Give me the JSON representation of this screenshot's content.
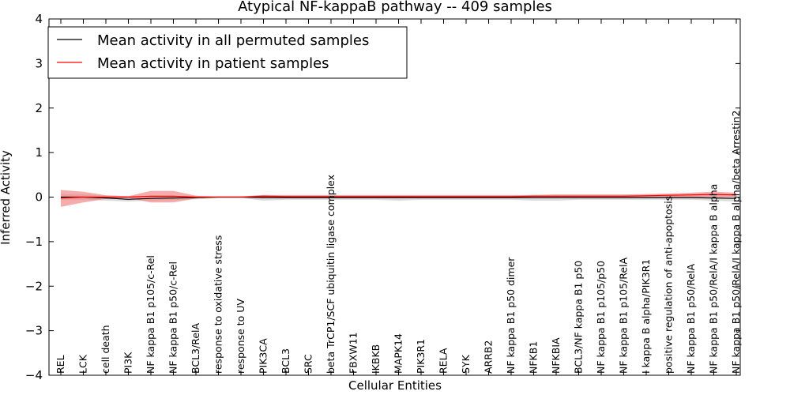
{
  "chart_data": {
    "type": "line",
    "title": "Atypical NF-kappaB pathway -- 409 samples",
    "xlabel": "Cellular Entities",
    "ylabel": "Inferred Activity",
    "ylim": [
      -4,
      4
    ],
    "yticks": [
      4,
      3,
      2,
      1,
      0,
      -1,
      -2,
      -3,
      -4
    ],
    "ytick_labels": [
      "4",
      "3",
      "2",
      "1",
      "0",
      "−1",
      "−2",
      "−3",
      "−4"
    ],
    "grid": false,
    "legend_location": "top-left",
    "categories": [
      "REL",
      "LCK",
      "cell death",
      "PI3K",
      "NF kappa B1 p105/c-Rel",
      "NF kappa B1 p50/c-Rel",
      "BCL3/RelA",
      "response to oxidative stress",
      "response to UV",
      "PIK3CA",
      "BCL3",
      "SRC",
      "beta TrCP1/SCF ubiquitin ligase complex",
      "FBXW11",
      "IKBKB",
      "MAPK14",
      "PIK3R1",
      "RELA",
      "SYK",
      "ARRB2",
      "NF kappa B1 p50 dimer",
      "NFKB1",
      "NFKBIA",
      "BCL3/NF kappa B1 p50",
      "NF kappa B1 p105/p50",
      "NF kappa B1 p105/RelA",
      "I kappa B alpha/PIK3R1",
      "positive regulation of anti-apoptosis",
      "NF kappa B1 p50/RelA",
      "NF kappa B1 p50/RelA/I kappa B alpha",
      "NF kappa B1 p50/RelA/I kappa B alpha/beta Arrestin2"
    ],
    "series": [
      {
        "name": "Mean activity in all permuted samples",
        "color": "#000000",
        "values": [
          0.0,
          0.0,
          -0.02,
          -0.05,
          -0.03,
          -0.02,
          -0.01,
          0.0,
          0.0,
          -0.01,
          -0.01,
          -0.01,
          -0.01,
          -0.01,
          -0.01,
          -0.01,
          -0.01,
          -0.01,
          -0.01,
          -0.01,
          -0.01,
          -0.01,
          -0.01,
          -0.01,
          -0.01,
          -0.01,
          -0.01,
          -0.01,
          -0.01,
          -0.02,
          -0.03
        ],
        "band_lower": [
          -0.06,
          -0.06,
          -0.08,
          -0.1,
          -0.08,
          -0.07,
          -0.05,
          -0.02,
          -0.02,
          -0.08,
          -0.06,
          -0.06,
          -0.06,
          -0.06,
          -0.06,
          -0.08,
          -0.06,
          -0.06,
          -0.06,
          -0.06,
          -0.06,
          -0.08,
          -0.08,
          -0.06,
          -0.06,
          -0.06,
          -0.06,
          -0.06,
          -0.06,
          -0.08,
          -0.1
        ],
        "band_upper": [
          0.06,
          0.06,
          0.04,
          0.02,
          0.03,
          0.03,
          0.03,
          0.02,
          0.02,
          0.05,
          0.05,
          0.05,
          0.05,
          0.05,
          0.05,
          0.05,
          0.05,
          0.05,
          0.05,
          0.05,
          0.05,
          0.05,
          0.05,
          0.05,
          0.05,
          0.05,
          0.05,
          0.05,
          0.05,
          0.06,
          0.06
        ],
        "band_color": "#b0b0b0"
      },
      {
        "name": "Mean activity in patient samples",
        "color": "#ff0000",
        "values": [
          -0.02,
          0.0,
          0.0,
          0.0,
          0.02,
          0.02,
          0.0,
          0.0,
          0.0,
          0.02,
          0.01,
          0.01,
          0.01,
          0.01,
          0.01,
          0.01,
          0.01,
          0.01,
          0.01,
          0.01,
          0.01,
          0.02,
          0.02,
          0.02,
          0.02,
          0.02,
          0.03,
          0.04,
          0.05,
          0.06,
          0.05
        ],
        "band_lower": [
          -0.22,
          -0.12,
          -0.04,
          -0.02,
          -0.12,
          -0.12,
          -0.03,
          -0.01,
          -0.01,
          -0.01,
          -0.01,
          -0.01,
          -0.01,
          -0.01,
          -0.01,
          -0.01,
          -0.01,
          -0.01,
          -0.01,
          -0.01,
          -0.01,
          -0.01,
          -0.01,
          -0.01,
          -0.01,
          -0.01,
          -0.01,
          0.0,
          0.0,
          0.0,
          0.0
        ],
        "band_upper": [
          0.16,
          0.12,
          0.04,
          0.02,
          0.14,
          0.14,
          0.03,
          0.01,
          0.01,
          0.05,
          0.04,
          0.04,
          0.04,
          0.04,
          0.04,
          0.04,
          0.04,
          0.04,
          0.04,
          0.04,
          0.04,
          0.05,
          0.06,
          0.06,
          0.06,
          0.06,
          0.07,
          0.08,
          0.1,
          0.12,
          0.1
        ],
        "band_color": "#f08080"
      }
    ]
  }
}
